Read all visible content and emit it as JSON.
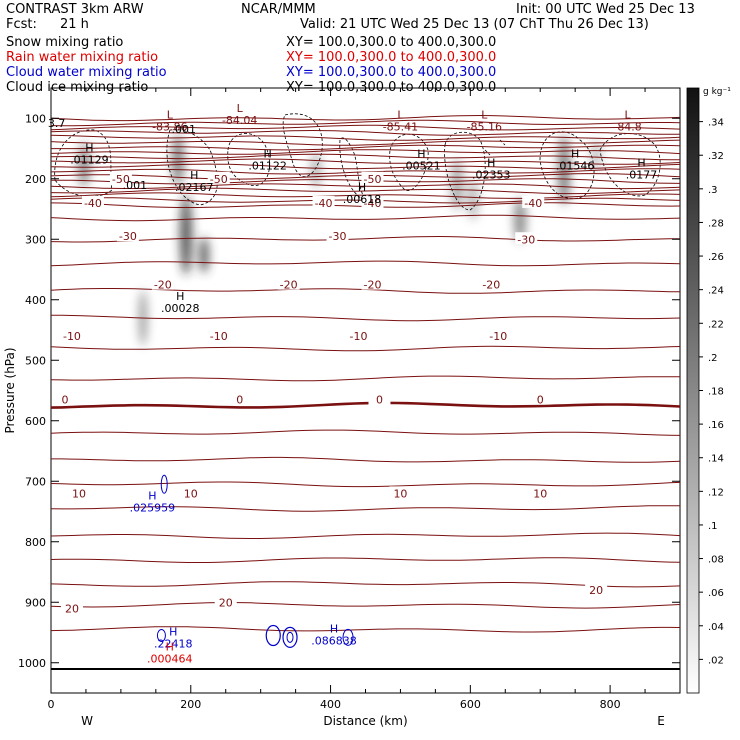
{
  "header": {
    "product": "CONTRAST  3km ARW",
    "center": "NCAR/MMM",
    "init": "Init: 00 UTC Wed 25 Dec 13",
    "fcst_label": "Fcst:",
    "fcst_value": "21 h",
    "valid": "Valid: 21 UTC Wed 25 Dec 13 (07 ChT Thu 26 Dec 13)"
  },
  "fields": [
    {
      "name": "Snow mixing ratio",
      "xy": "XY=  100.0,300.0  to  400.0,300.0",
      "color": "#000000"
    },
    {
      "name": "Rain water mixing ratio",
      "xy": "XY=  100.0,300.0  to  400.0,300.0",
      "color": "#dd0000"
    },
    {
      "name": "Cloud water mixing ratio",
      "xy": "XY=  100.0,300.0  to  400.0,300.0",
      "color": "#0000cc"
    },
    {
      "name": "Cloud ice mixing ratio",
      "xy": "XY=  100.0,300.0  to  400.0,300.0",
      "color": "#000000"
    }
  ],
  "chart_data": {
    "type": "contour cross-section",
    "xlabel": "Distance (km)",
    "ylabel": "Pressure (hPa)",
    "xlim": [
      0,
      900
    ],
    "ylim": [
      1050,
      50
    ],
    "xticks": [
      0,
      200,
      400,
      600,
      800
    ],
    "yticks": [
      100,
      200,
      300,
      400,
      500,
      600,
      700,
      800,
      900,
      1000
    ],
    "x_end_labels": {
      "left": "W",
      "right": "E"
    },
    "colorbar": {
      "unit": "g kg⁻¹",
      "ticks": [
        ".34",
        ".32",
        ".3",
        ".28",
        ".26",
        ".24",
        ".22",
        ".2",
        ".18",
        ".16",
        ".14",
        ".12",
        ".1",
        ".08",
        ".06",
        ".04",
        ".02"
      ]
    },
    "temperature_isotherm_labels": [
      {
        "text": "-50",
        "x": 100,
        "p": 200
      },
      {
        "text": "-50",
        "x": 240,
        "p": 200
      },
      {
        "text": "-50",
        "x": 460,
        "p": 200
      },
      {
        "text": "-40",
        "x": 60,
        "p": 240
      },
      {
        "text": "-40",
        "x": 390,
        "p": 240
      },
      {
        "text": "-40",
        "x": 460,
        "p": 240
      },
      {
        "text": "-40",
        "x": 690,
        "p": 240
      },
      {
        "text": "-30",
        "x": 110,
        "p": 295
      },
      {
        "text": "-30",
        "x": 410,
        "p": 295
      },
      {
        "text": "-30",
        "x": 680,
        "p": 300
      },
      {
        "text": "-20",
        "x": 160,
        "p": 375
      },
      {
        "text": "-20",
        "x": 340,
        "p": 375
      },
      {
        "text": "-20",
        "x": 460,
        "p": 375
      },
      {
        "text": "-20",
        "x": 630,
        "p": 375
      },
      {
        "text": "-10",
        "x": 30,
        "p": 460
      },
      {
        "text": "-10",
        "x": 240,
        "p": 460
      },
      {
        "text": "-10",
        "x": 440,
        "p": 460
      },
      {
        "text": "-10",
        "x": 640,
        "p": 460
      },
      {
        "text": "0",
        "x": 20,
        "p": 565
      },
      {
        "text": "0",
        "x": 270,
        "p": 565
      },
      {
        "text": "0",
        "x": 470,
        "p": 565
      },
      {
        "text": "0",
        "x": 700,
        "p": 565
      },
      {
        "text": "10",
        "x": 40,
        "p": 720
      },
      {
        "text": "10",
        "x": 200,
        "p": 720
      },
      {
        "text": "10",
        "x": 500,
        "p": 720
      },
      {
        "text": "10",
        "x": 700,
        "p": 720
      },
      {
        "text": "20",
        "x": 30,
        "p": 910
      },
      {
        "text": "20",
        "x": 250,
        "p": 900
      },
      {
        "text": "20",
        "x": 780,
        "p": 880
      }
    ],
    "extrema": [
      {
        "kind": "L",
        "value": "-83.86",
        "x": 170,
        "p": 105,
        "color": "#7a1010"
      },
      {
        "kind": "L",
        "value": "-84.04",
        "x": 270,
        "p": 95,
        "color": "#7a1010"
      },
      {
        "kind": "L",
        "value": "-85.41",
        "x": 500,
        "p": 105,
        "color": "#7a1010"
      },
      {
        "kind": "L",
        "value": "-85.16",
        "x": 620,
        "p": 105,
        "color": "#7a1010"
      },
      {
        "kind": "L",
        "value": "-84.8",
        "x": 825,
        "p": 105,
        "color": "#7a1010"
      },
      {
        "kind": "H",
        "value": ".01129",
        "x": 55,
        "p": 160,
        "color": "#000000"
      },
      {
        "kind": "H",
        "value": ".02167",
        "x": 205,
        "p": 205,
        "color": "#000000"
      },
      {
        "kind": "H",
        "value": ".01122",
        "x": 310,
        "p": 170,
        "color": "#000000"
      },
      {
        "kind": "H",
        "value": ".00618",
        "x": 445,
        "p": 225,
        "color": "#000000"
      },
      {
        "kind": "H",
        "value": ".00521",
        "x": 530,
        "p": 170,
        "color": "#000000"
      },
      {
        "kind": "H",
        "value": ".02353",
        "x": 630,
        "p": 185,
        "color": "#000000"
      },
      {
        "kind": "H",
        "value": ".01546",
        "x": 750,
        "p": 170,
        "color": "#000000"
      },
      {
        "kind": "H",
        "value": ".0177",
        "x": 845,
        "p": 185,
        "color": "#000000"
      },
      {
        "kind": "H",
        "value": ".00028",
        "x": 185,
        "p": 405,
        "color": "#000000"
      },
      {
        "kind": "H",
        "value": ".025959",
        "x": 145,
        "p": 735,
        "color": "#0000cc"
      },
      {
        "kind": "H",
        "value": ".22418",
        "x": 175,
        "p": 960,
        "color": "#0000cc"
      },
      {
        "kind": "H",
        "value": ".086838",
        "x": 405,
        "p": 955,
        "color": "#0000cc"
      },
      {
        "kind": "H",
        "value": ".000464",
        "x": 170,
        "p": 985,
        "color": "#dd0000"
      }
    ],
    "misc_labels": [
      {
        "text": ".001",
        "x": 190,
        "p": 118
      },
      {
        "text": ".001",
        "x": 120,
        "p": 210
      },
      {
        "text": "3.7",
        "x": 8,
        "p": 108
      }
    ]
  }
}
